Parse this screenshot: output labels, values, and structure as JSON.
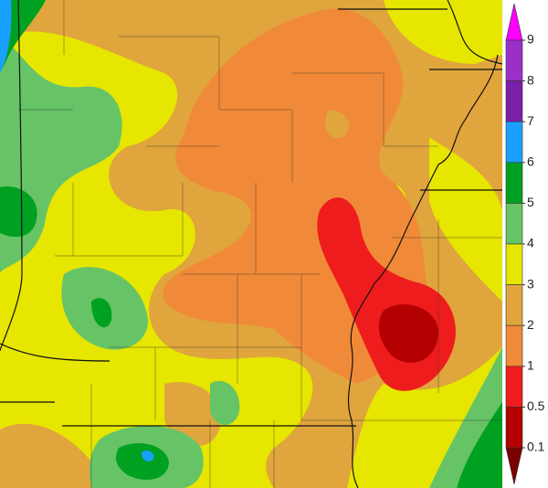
{
  "legend": {
    "labels": [
      9,
      8,
      7,
      6,
      5,
      4,
      3,
      2,
      1,
      0.5,
      0.1
    ],
    "colors": [
      "#ff00ff",
      "#9a30c8",
      "#7a1fa8",
      "#1aa0ff",
      "#00a020",
      "#66c466",
      "#e6e600",
      "#e0a53c",
      "#f08a38",
      "#ee1c1c",
      "#b40000",
      "#7a0000"
    ]
  }
}
